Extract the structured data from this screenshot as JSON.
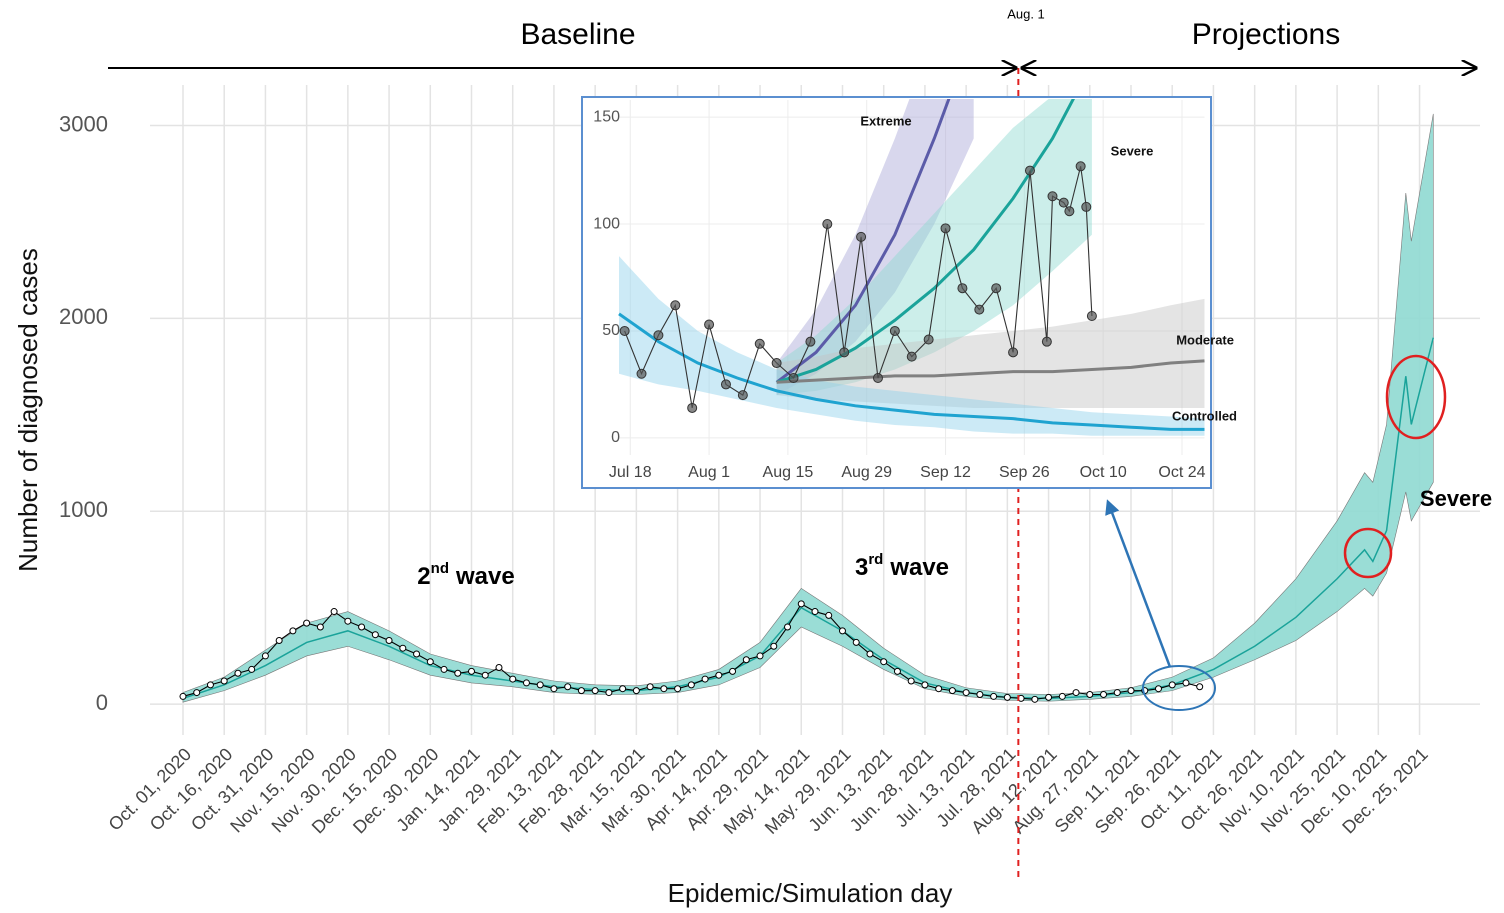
{
  "chart_data": [
    {
      "type": "line",
      "x_label": "Epidemic/Simulation day",
      "y_label": "Number of diagnosed cases",
      "phases": [
        "Baseline",
        "Projections"
      ],
      "marker": {
        "label": "Aug. 1",
        "x": "2021-08-01",
        "color": "#e02020"
      },
      "wave_labels": [
        {
          "number": "2",
          "suffix": "nd",
          "text": "wave"
        },
        {
          "number": "3",
          "suffix": "rd",
          "text": "wave"
        }
      ],
      "xlim": [
        "2020-09-19",
        "2022-01-16"
      ],
      "xticks": [
        {
          "value": "2020-10-01",
          "label": "Oct. 01, 2020"
        },
        {
          "value": "2020-10-16",
          "label": "Oct. 16, 2020"
        },
        {
          "value": "2020-10-31",
          "label": "Oct. 31, 2020"
        },
        {
          "value": "2020-11-15",
          "label": "Nov. 15, 2020"
        },
        {
          "value": "2020-11-30",
          "label": "Nov. 30, 2020"
        },
        {
          "value": "2020-12-15",
          "label": "Dec. 15, 2020"
        },
        {
          "value": "2020-12-30",
          "label": "Dec. 30, 2020"
        },
        {
          "value": "2021-01-14",
          "label": "Jan. 14, 2021"
        },
        {
          "value": "2021-01-29",
          "label": "Jan. 29, 2021"
        },
        {
          "value": "2021-02-13",
          "label": "Feb. 13, 2021"
        },
        {
          "value": "2021-02-28",
          "label": "Feb. 28, 2021"
        },
        {
          "value": "2021-03-15",
          "label": "Mar. 15, 2021"
        },
        {
          "value": "2021-03-30",
          "label": "Mar. 30, 2021"
        },
        {
          "value": "2021-04-14",
          "label": "Apr. 14, 2021"
        },
        {
          "value": "2021-04-29",
          "label": "Apr. 29, 2021"
        },
        {
          "value": "2021-05-14",
          "label": "May. 14, 2021"
        },
        {
          "value": "2021-05-29",
          "label": "May. 29, 2021"
        },
        {
          "value": "2021-06-13",
          "label": "Jun. 13, 2021"
        },
        {
          "value": "2021-06-28",
          "label": "Jun. 28, 2021"
        },
        {
          "value": "2021-07-13",
          "label": "Jul. 13, 2021"
        },
        {
          "value": "2021-07-28",
          "label": "Jul. 28, 2021"
        },
        {
          "value": "2021-08-12",
          "label": "Aug. 12, 2021"
        },
        {
          "value": "2021-08-27",
          "label": "Aug. 27, 2021"
        },
        {
          "value": "2021-09-11",
          "label": "Sep. 11, 2021"
        },
        {
          "value": "2021-09-26",
          "label": "Sep. 26, 2021"
        },
        {
          "value": "2021-10-11",
          "label": "Oct. 11, 2021"
        },
        {
          "value": "2021-10-26",
          "label": "Oct. 26, 2021"
        },
        {
          "value": "2021-11-10",
          "label": "Nov. 10, 2021"
        },
        {
          "value": "2021-11-25",
          "label": "Nov. 25, 2021"
        },
        {
          "value": "2021-12-10",
          "label": "Dec. 10, 2021"
        },
        {
          "value": "2021-12-25",
          "label": "Dec. 25, 2021"
        }
      ],
      "ylim": [
        -160,
        3210
      ],
      "yticks": [
        0,
        1000,
        2000,
        3000
      ],
      "grid": true,
      "series": [
        {
          "color": "#000000",
          "x": [
            "2020-10-01",
            "2020-10-06",
            "2020-10-11",
            "2020-10-16",
            "2020-10-21",
            "2020-10-26",
            "2020-10-31",
            "2020-11-05",
            "2020-11-10",
            "2020-11-15",
            "2020-11-20",
            "2020-11-25",
            "2020-11-30",
            "2020-12-05",
            "2020-12-10",
            "2020-12-15",
            "2020-12-20",
            "2020-12-25",
            "2020-12-30",
            "2021-01-04",
            "2021-01-09",
            "2021-01-14",
            "2021-01-19",
            "2021-01-24",
            "2021-01-29",
            "2021-02-03",
            "2021-02-08",
            "2021-02-13",
            "2021-02-18",
            "2021-02-23",
            "2021-02-28",
            "2021-03-05",
            "2021-03-10",
            "2021-03-15",
            "2021-03-20",
            "2021-03-25",
            "2021-03-30",
            "2021-04-04",
            "2021-04-09",
            "2021-04-14",
            "2021-04-19",
            "2021-04-24",
            "2021-04-29",
            "2021-05-04",
            "2021-05-09",
            "2021-05-14",
            "2021-05-19",
            "2021-05-24",
            "2021-05-29",
            "2021-06-03",
            "2021-06-08",
            "2021-06-13",
            "2021-06-18",
            "2021-06-23",
            "2021-06-28",
            "2021-07-03",
            "2021-07-08",
            "2021-07-13",
            "2021-07-18",
            "2021-07-23",
            "2021-07-28",
            "2021-08-02",
            "2021-08-07",
            "2021-08-12",
            "2021-08-17",
            "2021-08-22",
            "2021-08-27",
            "2021-09-01",
            "2021-09-06",
            "2021-09-11",
            "2021-09-16",
            "2021-09-21",
            "2021-09-26",
            "2021-10-01",
            "2021-10-06"
          ],
          "values": [
            40,
            60,
            100,
            120,
            160,
            180,
            250,
            330,
            380,
            420,
            400,
            480,
            430,
            400,
            360,
            330,
            290,
            260,
            220,
            180,
            160,
            170,
            150,
            190,
            130,
            110,
            100,
            80,
            90,
            70,
            70,
            60,
            80,
            70,
            90,
            80,
            80,
            100,
            130,
            150,
            170,
            230,
            250,
            300,
            400,
            520,
            480,
            460,
            380,
            320,
            260,
            220,
            170,
            120,
            100,
            80,
            70,
            60,
            50,
            40,
            35,
            30,
            25,
            35,
            40,
            60,
            50,
            50,
            60,
            70,
            70,
            80,
            100,
            110,
            90
          ]
        },
        {
          "name": "Severe",
          "color": "#1aa39a",
          "band_color": "#8fd9d1",
          "x": [
            "2020-10-01",
            "2020-10-16",
            "2020-10-31",
            "2020-11-15",
            "2020-11-30",
            "2020-12-15",
            "2020-12-30",
            "2021-01-14",
            "2021-01-29",
            "2021-02-13",
            "2021-02-28",
            "2021-03-15",
            "2021-03-30",
            "2021-04-14",
            "2021-04-29",
            "2021-05-14",
            "2021-05-29",
            "2021-06-13",
            "2021-06-28",
            "2021-07-13",
            "2021-07-28",
            "2021-08-12",
            "2021-08-27",
            "2021-09-11",
            "2021-09-26",
            "2021-10-11",
            "2021-10-26",
            "2021-11-10",
            "2021-11-25",
            "2021-12-05",
            "2021-12-08",
            "2021-12-13",
            "2021-12-20",
            "2021-12-22",
            "2021-12-30"
          ],
          "values": [
            30,
            100,
            200,
            320,
            380,
            300,
            200,
            150,
            120,
            90,
            75,
            70,
            90,
            140,
            250,
            500,
            380,
            230,
            110,
            60,
            35,
            30,
            40,
            60,
            100,
            180,
            300,
            450,
            650,
            800,
            740,
            900,
            1700,
            1450,
            1900
          ],
          "lower": [
            10,
            70,
            150,
            250,
            300,
            230,
            150,
            110,
            90,
            60,
            50,
            50,
            60,
            100,
            190,
            400,
            300,
            180,
            80,
            40,
            20,
            15,
            25,
            40,
            70,
            140,
            230,
            330,
            480,
            600,
            560,
            680,
            1100,
            950,
            1150
          ],
          "upper": [
            60,
            140,
            280,
            420,
            480,
            380,
            260,
            200,
            160,
            120,
            100,
            95,
            120,
            180,
            320,
            600,
            460,
            290,
            150,
            85,
            55,
            50,
            60,
            85,
            140,
            240,
            420,
            650,
            950,
            1200,
            1150,
            1450,
            2650,
            2400,
            3060
          ]
        }
      ]
    },
    {
      "type": "line",
      "xlim": [
        "07-16",
        "10-28"
      ],
      "xticks": [
        {
          "value": "07-18",
          "label": "Jul 18"
        },
        {
          "value": "08-01",
          "label": "Aug 1"
        },
        {
          "value": "08-15",
          "label": "Aug 15"
        },
        {
          "value": "08-29",
          "label": "Aug 29"
        },
        {
          "value": "09-12",
          "label": "Sep 12"
        },
        {
          "value": "09-26",
          "label": "Sep 26"
        },
        {
          "value": "10-10",
          "label": "Oct 10"
        },
        {
          "value": "10-24",
          "label": "Oct 24"
        }
      ],
      "ylim": [
        -8,
        158
      ],
      "yticks": [
        0,
        50,
        100,
        150
      ],
      "grid": true,
      "series": [
        {
          "color": "#333333",
          "x": [
            "07-17",
            "07-20",
            "07-23",
            "07-26",
            "07-29",
            "08-01",
            "08-04",
            "08-07",
            "08-10",
            "08-13",
            "08-16",
            "08-19",
            "08-22",
            "08-25",
            "08-28",
            "08-31",
            "09-03",
            "09-06",
            "09-09",
            "09-12",
            "09-15",
            "09-18",
            "09-21",
            "09-24",
            "09-27",
            "09-30",
            "10-01",
            "10-03",
            "10-04",
            "10-06",
            "10-07",
            "10-08"
          ],
          "values": [
            50,
            30,
            48,
            62,
            14,
            53,
            25,
            20,
            44,
            35,
            28,
            45,
            100,
            40,
            94,
            28,
            50,
            38,
            46,
            98,
            70,
            60,
            70,
            40,
            125,
            45,
            113,
            110,
            106,
            127,
            108,
            57
          ]
        },
        {
          "name": "Extreme",
          "color": "#5b5ba8",
          "band_color": "#a9a6d6",
          "x": [
            "08-13",
            "08-20",
            "08-27",
            "09-03",
            "09-10",
            "09-17"
          ],
          "values": [
            26,
            40,
            62,
            95,
            140,
            190
          ],
          "lower": [
            20,
            30,
            45,
            68,
            100,
            140
          ],
          "upper": [
            35,
            60,
            95,
            140,
            190,
            240
          ]
        },
        {
          "name": "Severe",
          "color": "#1aa39a",
          "band_color": "#8fd9d1",
          "x": [
            "08-13",
            "08-20",
            "08-27",
            "09-03",
            "09-10",
            "09-17",
            "09-24",
            "10-01",
            "10-08"
          ],
          "values": [
            26,
            32,
            42,
            55,
            70,
            88,
            112,
            140,
            175
          ],
          "lower": [
            20,
            22,
            26,
            32,
            40,
            50,
            62,
            78,
            95
          ],
          "upper": [
            35,
            48,
            65,
            85,
            105,
            125,
            145,
            160,
            175
          ]
        },
        {
          "name": "Moderate",
          "color": "#808080",
          "band_color": "#c4c4c4",
          "x": [
            "08-13",
            "08-20",
            "08-27",
            "09-03",
            "09-10",
            "09-17",
            "09-24",
            "10-01",
            "10-08",
            "10-15",
            "10-22",
            "10-28"
          ],
          "values": [
            26,
            27,
            28,
            29,
            29,
            30,
            31,
            31,
            32,
            33,
            35,
            36
          ],
          "lower": [
            20,
            18,
            17,
            16,
            15,
            14,
            14,
            14,
            14,
            14,
            14,
            14
          ],
          "upper": [
            35,
            38,
            42,
            44,
            46,
            48,
            50,
            52,
            55,
            58,
            62,
            65
          ]
        },
        {
          "name": "Controlled",
          "color": "#1fa3d0",
          "band_color": "#8fd0ea",
          "x": [
            "07-16",
            "07-23",
            "07-30",
            "08-06",
            "08-13",
            "08-20",
            "08-27",
            "09-03",
            "09-10",
            "09-17",
            "09-24",
            "10-01",
            "10-08",
            "10-15",
            "10-22",
            "10-28"
          ],
          "values": [
            58,
            45,
            35,
            28,
            22,
            18,
            15,
            13,
            11,
            10,
            9,
            7,
            6,
            5,
            4,
            4
          ],
          "lower": [
            30,
            25,
            22,
            18,
            14,
            11,
            8,
            6,
            5,
            3,
            2,
            2,
            1,
            1,
            1,
            1
          ],
          "upper": [
            85,
            65,
            50,
            40,
            32,
            27,
            24,
            22,
            20,
            18,
            16,
            14,
            12,
            11,
            10,
            9
          ]
        }
      ]
    }
  ]
}
